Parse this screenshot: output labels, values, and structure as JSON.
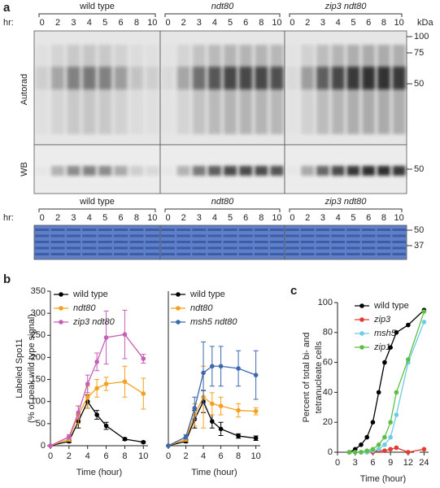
{
  "panel_a": {
    "label": "a",
    "hr_label": "hr:",
    "groups": [
      "wild type",
      "ndt80",
      "zip3 ndt80"
    ],
    "lanes": [
      "0",
      "2",
      "3",
      "4",
      "5",
      "6",
      "8",
      "10"
    ],
    "kda": "kDa",
    "autorad_markers": [
      "100",
      "75",
      "50"
    ],
    "wb_marker": "50",
    "row_labels": [
      "Autorad",
      "WB"
    ],
    "coomassie_markers": [
      "50",
      "37"
    ]
  },
  "chart_data": [
    {
      "type": "line",
      "panel_label": "b",
      "x": [
        0,
        2,
        3,
        4,
        5,
        6,
        8,
        10
      ],
      "xlim": [
        0,
        10.5
      ],
      "xticks": [
        0,
        2,
        4,
        6,
        8,
        10
      ],
      "ylim": [
        0,
        350
      ],
      "yticks": [
        0,
        50,
        100,
        150,
        200,
        250,
        300,
        350
      ],
      "ylabel": [
        "Labeled Spo11",
        "(% of peak wild type signal)"
      ],
      "xlabel": "Time (hour)",
      "series": [
        {
          "name": "wild type",
          "color": "#000000",
          "values": [
            0,
            10,
            55,
            100,
            70,
            45,
            15,
            8
          ],
          "errors": [
            0,
            3,
            15,
            15,
            10,
            8,
            3,
            2
          ]
        },
        {
          "name": "ndt80",
          "color": "#f5a11f",
          "values": [
            0,
            15,
            70,
            110,
            130,
            140,
            145,
            118
          ],
          "errors": [
            0,
            5,
            20,
            25,
            20,
            15,
            35,
            35
          ]
        },
        {
          "name": "zip3 ndt80",
          "color": "#c65fb5",
          "values": [
            0,
            20,
            75,
            140,
            190,
            245,
            252,
            197
          ],
          "errors": [
            0,
            5,
            15,
            20,
            20,
            60,
            55,
            10
          ]
        }
      ]
    },
    {
      "type": "line",
      "x": [
        0,
        2,
        3,
        4,
        5,
        6,
        8,
        10
      ],
      "xlim": [
        0,
        10.5
      ],
      "xticks": [
        0,
        2,
        4,
        6,
        8,
        10
      ],
      "ylim": [
        0,
        350
      ],
      "xlabel": "Time (hour)",
      "series": [
        {
          "name": "wild type",
          "color": "#000000",
          "values": [
            0,
            10,
            60,
            100,
            55,
            38,
            22,
            17
          ],
          "errors": [
            0,
            3,
            20,
            25,
            15,
            15,
            5,
            5
          ]
        },
        {
          "name": "ndt80",
          "color": "#f5a11f",
          "values": [
            0,
            15,
            70,
            110,
            95,
            90,
            80,
            78
          ],
          "errors": [
            0,
            5,
            25,
            70,
            25,
            20,
            15,
            8
          ]
        },
        {
          "name": "msh5 ndt80",
          "color": "#3c68b0",
          "values": [
            0,
            20,
            85,
            165,
            180,
            180,
            175,
            160
          ],
          "errors": [
            0,
            5,
            25,
            70,
            45,
            45,
            40,
            55
          ]
        }
      ]
    },
    {
      "type": "line",
      "panel_label": "c",
      "x": [
        2,
        3,
        4,
        5,
        6,
        7,
        8,
        9,
        10,
        12,
        24
      ],
      "xlim": [
        0,
        25
      ],
      "xbreak": [
        13,
        23
      ],
      "xticks": [
        0,
        3,
        6,
        9,
        12,
        24
      ],
      "ylim": [
        0,
        100
      ],
      "yticks": [
        0,
        20,
        40,
        60,
        80,
        100
      ],
      "ylabel": [
        "Percent of total bi- and",
        "tetranucleate cells"
      ],
      "xlabel": "Time (hour)",
      "series": [
        {
          "name": "wild type",
          "color": "#000000",
          "values": [
            0,
            2,
            5,
            10,
            20,
            40,
            60,
            70,
            80,
            85,
            95
          ]
        },
        {
          "name": "zip3",
          "color": "#e33b2e",
          "values": [
            0,
            0,
            0,
            0,
            0,
            1,
            1,
            2,
            3,
            0,
            2
          ]
        },
        {
          "name": "msh5",
          "color": "#6ccde0",
          "values": [
            0,
            0,
            0,
            0,
            1,
            2,
            5,
            10,
            25,
            60,
            87
          ]
        },
        {
          "name": "zip1",
          "color": "#5cbf45",
          "values": [
            0,
            0,
            0,
            1,
            2,
            5,
            10,
            20,
            40,
            62,
            94
          ]
        }
      ]
    }
  ]
}
